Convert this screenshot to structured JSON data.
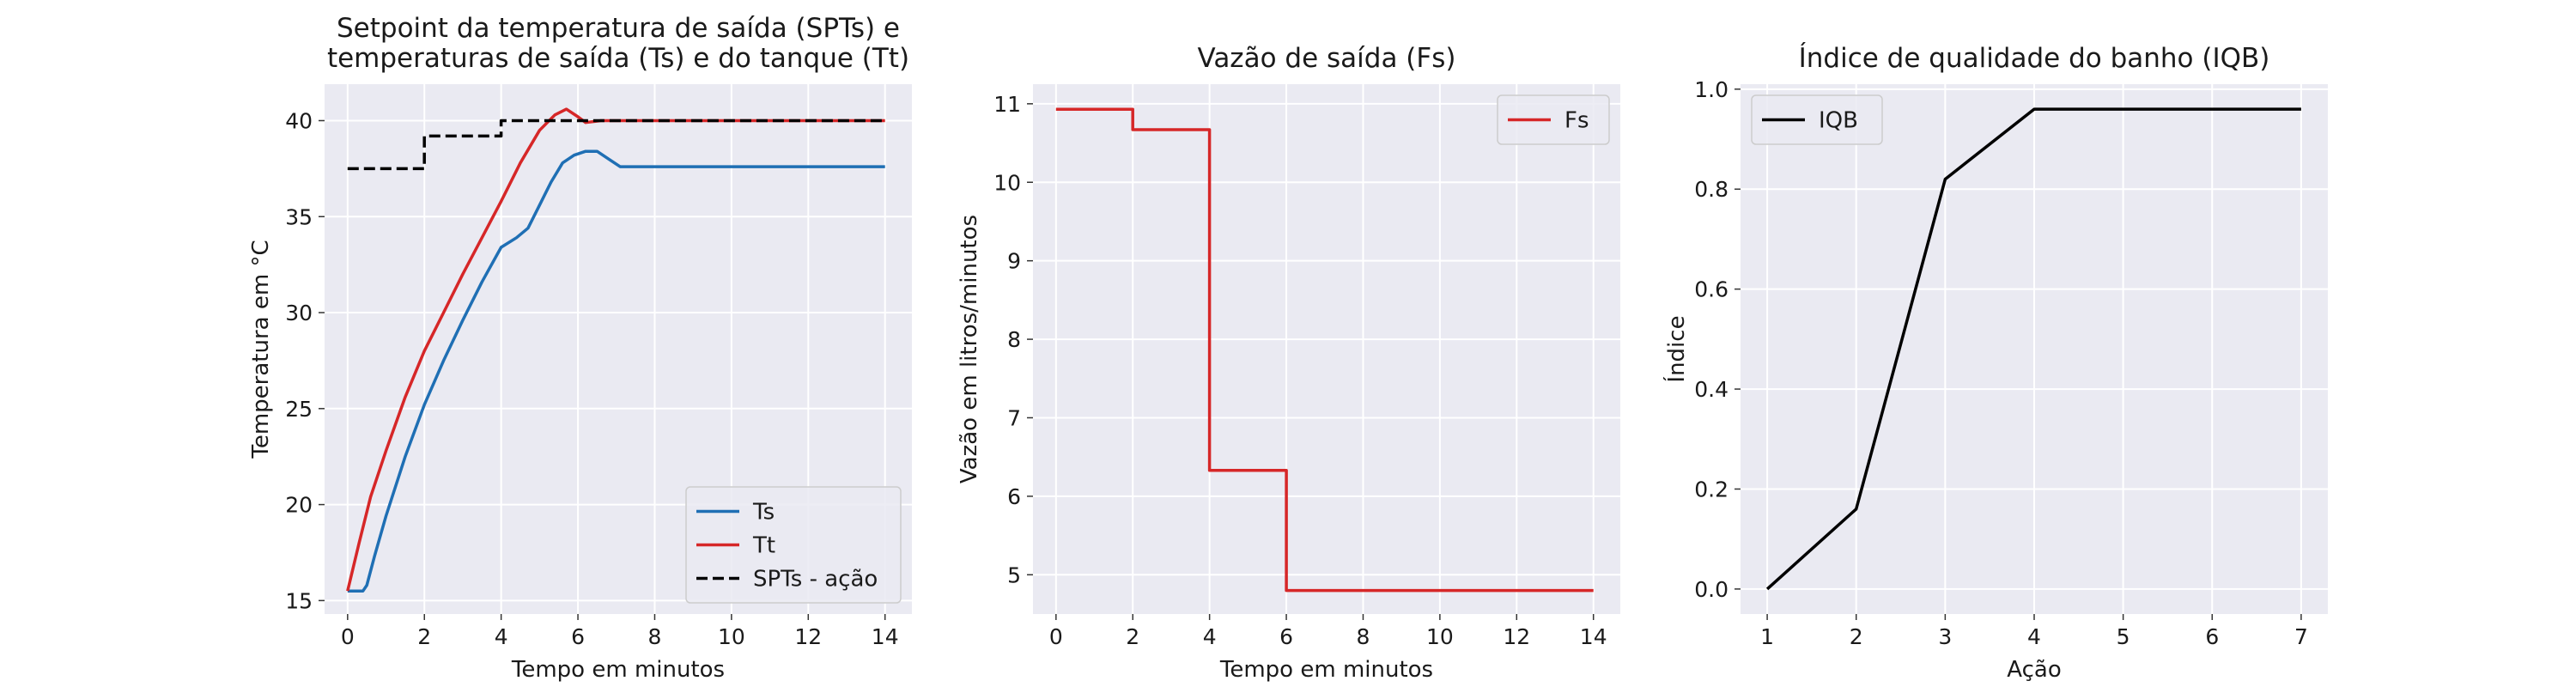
{
  "chart_data": [
    {
      "type": "line",
      "title_lines": [
        "Setpoint da temperatura de saída (SPTs) e",
        "temperaturas de saída (Ts) e do tanque (Tt)"
      ],
      "xlabel": "Tempo em minutos",
      "ylabel": "Temperatura em °C",
      "xlim": [
        -0.6,
        14.7
      ],
      "ylim": [
        14.3,
        41.9
      ],
      "xticks": [
        0,
        2,
        4,
        6,
        8,
        10,
        12,
        14
      ],
      "yticks": [
        15,
        20,
        25,
        30,
        35,
        40
      ],
      "grid": true,
      "legend": "bottom-right",
      "series": [
        {
          "name": "Ts",
          "color": "#1f6fb4",
          "style": "solid",
          "points": [
            [
              0,
              15.5
            ],
            [
              0.4,
              15.5
            ],
            [
              0.5,
              15.8
            ],
            [
              0.7,
              17.3
            ],
            [
              1.0,
              19.4
            ],
            [
              1.5,
              22.5
            ],
            [
              2.0,
              25.2
            ],
            [
              2.5,
              27.5
            ],
            [
              3.0,
              29.6
            ],
            [
              3.5,
              31.6
            ],
            [
              4.0,
              33.4
            ],
            [
              4.4,
              33.9
            ],
            [
              4.7,
              34.4
            ],
            [
              5.0,
              35.6
            ],
            [
              5.3,
              36.8
            ],
            [
              5.6,
              37.8
            ],
            [
              5.9,
              38.2
            ],
            [
              6.2,
              38.4
            ],
            [
              6.5,
              38.4
            ],
            [
              6.8,
              38.0
            ],
            [
              7.1,
              37.6
            ],
            [
              7.5,
              37.6
            ],
            [
              9,
              37.6
            ],
            [
              12,
              37.6
            ],
            [
              14,
              37.6
            ]
          ]
        },
        {
          "name": "Tt",
          "color": "#d62728",
          "style": "solid",
          "points": [
            [
              0,
              15.5
            ],
            [
              0.3,
              18.0
            ],
            [
              0.6,
              20.4
            ],
            [
              1.0,
              22.8
            ],
            [
              1.5,
              25.6
            ],
            [
              2.0,
              28.0
            ],
            [
              2.5,
              30.0
            ],
            [
              3.0,
              32.0
            ],
            [
              3.5,
              33.9
            ],
            [
              4.0,
              35.8
            ],
            [
              4.5,
              37.8
            ],
            [
              5.0,
              39.5
            ],
            [
              5.4,
              40.3
            ],
            [
              5.7,
              40.6
            ],
            [
              6.0,
              40.2
            ],
            [
              6.2,
              39.9
            ],
            [
              6.6,
              40.0
            ],
            [
              8,
              40.0
            ],
            [
              10,
              40.0
            ],
            [
              12,
              40.0
            ],
            [
              14,
              40.0
            ]
          ]
        },
        {
          "name": "SPTs - ação",
          "color": "#000000",
          "style": "dashed",
          "points": [
            [
              0,
              37.5
            ],
            [
              2,
              37.5
            ],
            [
              2,
              39.2
            ],
            [
              4,
              39.2
            ],
            [
              4,
              40.0
            ],
            [
              14,
              40.0
            ]
          ]
        }
      ]
    },
    {
      "type": "line",
      "title_lines": [
        "Vazão de saída (Fs)"
      ],
      "xlabel": "Tempo em minutos",
      "ylabel": "Vazão em litros/minutos",
      "xlim": [
        -0.6,
        14.7
      ],
      "ylim": [
        4.5,
        11.25
      ],
      "xticks": [
        0,
        2,
        4,
        6,
        8,
        10,
        12,
        14
      ],
      "yticks": [
        5,
        6,
        7,
        8,
        9,
        10,
        11
      ],
      "grid": true,
      "legend": "top-right",
      "series": [
        {
          "name": "Fs",
          "color": "#d62728",
          "style": "solid",
          "points": [
            [
              0,
              10.93
            ],
            [
              2,
              10.93
            ],
            [
              2,
              10.67
            ],
            [
              4,
              10.67
            ],
            [
              4,
              6.33
            ],
            [
              6,
              6.33
            ],
            [
              6,
              4.8
            ],
            [
              14,
              4.8
            ]
          ]
        }
      ]
    },
    {
      "type": "line",
      "title_lines": [
        "Índice de qualidade do banho (IQB)"
      ],
      "xlabel": "Ação",
      "ylabel": "Índice",
      "xlim": [
        0.7,
        7.3
      ],
      "ylim": [
        -0.05,
        1.01
      ],
      "xticks": [
        1,
        2,
        3,
        4,
        5,
        6,
        7
      ],
      "yticks": [
        0.0,
        0.2,
        0.4,
        0.6,
        0.8,
        1.0
      ],
      "grid": true,
      "legend": "top-left",
      "series": [
        {
          "name": "IQB",
          "color": "#000000",
          "style": "solid",
          "points": [
            [
              1,
              0.0
            ],
            [
              2,
              0.16
            ],
            [
              3,
              0.82
            ],
            [
              4,
              0.96
            ],
            [
              5,
              0.96
            ],
            [
              6,
              0.96
            ],
            [
              7,
              0.96
            ]
          ]
        }
      ]
    }
  ]
}
